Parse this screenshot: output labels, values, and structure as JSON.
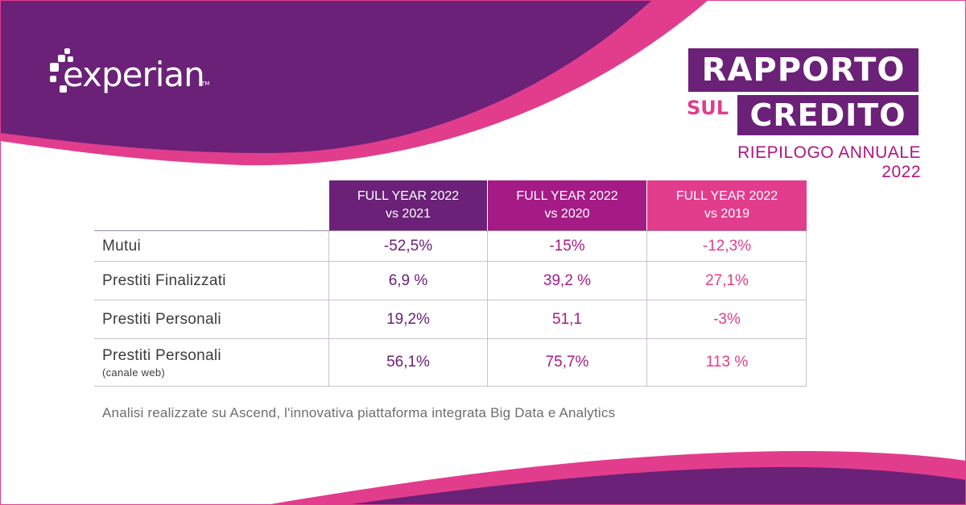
{
  "brand": {
    "logo_text": "experian",
    "trademark": "TM",
    "colors": {
      "purple": "#6a2177",
      "magenta": "#a51b85",
      "pink": "#e23d8d"
    }
  },
  "title": {
    "line1": "RAPPORTO",
    "sul": "SUL",
    "credito": "CREDITO",
    "subtitle": "RIEPILOGO ANNUALE 2022"
  },
  "table": {
    "columns": [
      {
        "line1": "FULL YEAR 2022",
        "line2": "vs 2021"
      },
      {
        "line1": "FULL YEAR 2022",
        "line2": "vs 2020"
      },
      {
        "line1": "FULL YEAR 2022",
        "line2": "vs 2019"
      }
    ],
    "rows": [
      {
        "label": "Mutui",
        "sublabel": "",
        "values": [
          "-52,5%",
          "-15%",
          "-12,3%"
        ]
      },
      {
        "label": "Prestiti Finalizzati",
        "sublabel": "",
        "values": [
          "6,9 %",
          "39,2 %",
          "27,1%"
        ]
      },
      {
        "label": "Prestiti Personali",
        "sublabel": "",
        "values": [
          "19,2%",
          "51,1",
          "-3%"
        ]
      },
      {
        "label": "Prestiti Personali",
        "sublabel": "(canale web)",
        "values": [
          "56,1%",
          "75,7%",
          "113 %"
        ]
      }
    ]
  },
  "footnote": "Analisi realizzate su Ascend, l'innovativa piattaforma integrata Big Data e Analytics"
}
